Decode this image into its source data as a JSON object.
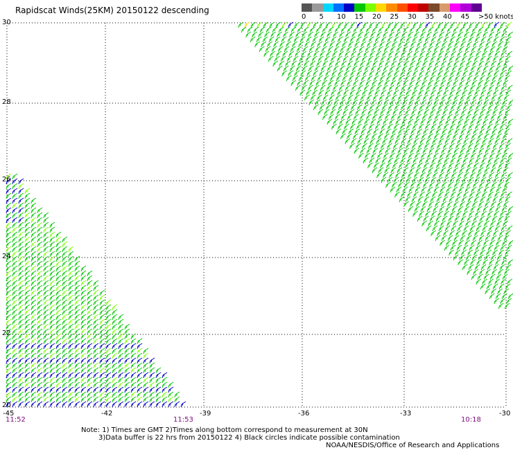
{
  "title": "Rapidscat Winds(25KM) 20150122 descending",
  "legend": {
    "labels": [
      "0",
      "5",
      "10",
      "15",
      "20",
      "25",
      "30",
      "35",
      "40",
      "45",
      ">50 knots"
    ],
    "colors": [
      "#555555",
      "#9a9a9a",
      "#00d8ff",
      "#0070ff",
      "#0000c8",
      "#00c800",
      "#7cff00",
      "#ffd700",
      "#ff8c00",
      "#ff5000",
      "#ff0000",
      "#c00000",
      "#7a4a2a",
      "#d89a6a",
      "#ff00ff",
      "#b000d8",
      "#600090"
    ]
  },
  "map": {
    "lat_labels": [
      "30",
      "28",
      "26",
      "24",
      "22",
      "20"
    ],
    "lon_labels": [
      "-45",
      "-42",
      "-39",
      "-36",
      "-33",
      "-30"
    ],
    "lat_range": [
      20,
      30
    ],
    "lon_range": [
      -45,
      -30
    ],
    "grid": true
  },
  "times": {
    "left": "11:52",
    "middle": "11:53",
    "right": "10:18"
  },
  "notes": {
    "line1": "Note: 1) Times are GMT 2)Times along bottom correspond to measurement at 30N",
    "line2": "3)Data buffer is 22 hrs from 20150122 4) Black circles indicate possible contamination",
    "credit": "NOAA/NESDIS/Office of Research and Applications"
  },
  "swaths": {
    "west_swath_colors": [
      "#0000c8",
      "#00c800",
      "#7cff00"
    ],
    "east_swath_colors": [
      "#00c800",
      "#7cff00",
      "#ffd700",
      "#0000c8"
    ]
  }
}
